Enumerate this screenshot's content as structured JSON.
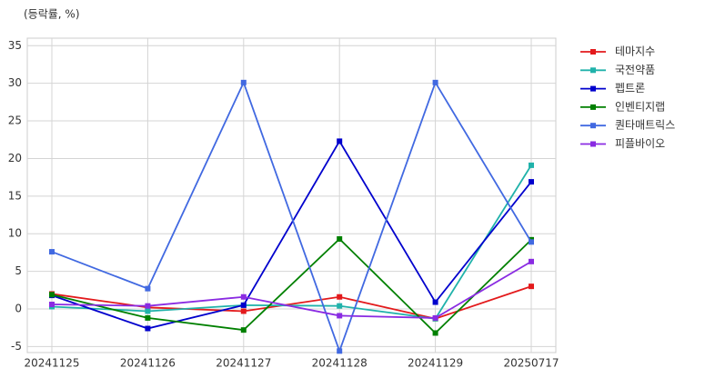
{
  "chart_data": {
    "type": "line",
    "title": "(등락률, %)",
    "categories": [
      "20241125",
      "20241126",
      "20241127",
      "20241128",
      "20241129",
      "20250717"
    ],
    "series": [
      {
        "name": "테마지수",
        "color": "#e31a1c",
        "values": [
          2.0,
          0.2,
          -0.3,
          1.6,
          -1.3,
          3.0
        ]
      },
      {
        "name": "국전약품",
        "color": "#20b2aa",
        "values": [
          0.3,
          -0.3,
          0.5,
          0.4,
          -1.3,
          19.1
        ]
      },
      {
        "name": "펩트론",
        "color": "#0000cd",
        "values": [
          1.8,
          -2.6,
          0.5,
          22.3,
          0.9,
          16.9
        ]
      },
      {
        "name": "인벤티지랩",
        "color": "#008000",
        "values": [
          1.9,
          -1.2,
          -2.8,
          9.3,
          -3.2,
          9.2
        ]
      },
      {
        "name": "퀀타매트릭스",
        "color": "#4169e1",
        "values": [
          7.6,
          2.7,
          30.1,
          -5.6,
          30.1,
          8.9
        ]
      },
      {
        "name": "피플바이오",
        "color": "#8a2be2",
        "values": [
          0.6,
          0.4,
          1.6,
          -0.9,
          -1.2,
          6.3
        ]
      }
    ],
    "ylim": [
      -5.8,
      36
    ],
    "yticks": [
      -5,
      0,
      5,
      10,
      15,
      20,
      25,
      30,
      35
    ],
    "grid": true,
    "legend": "outside-right"
  }
}
